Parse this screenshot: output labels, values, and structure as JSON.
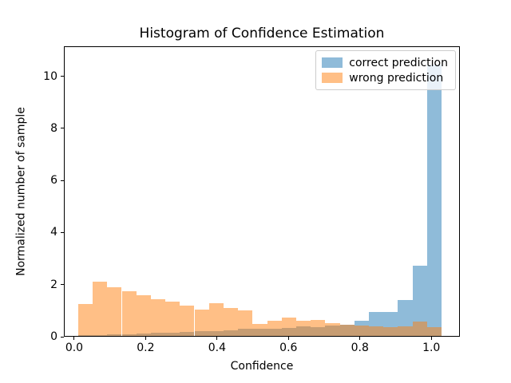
{
  "chart_data": {
    "type": "bar",
    "subtype": "overlapping-histogram",
    "title": "Histogram of Confidence Estimation",
    "xlabel": "Confidence",
    "ylabel": "Normalized number of sample",
    "x_ticks": [
      0.0,
      0.2,
      0.4,
      0.6,
      0.8,
      1.0
    ],
    "x_tick_labels": [
      "0.0",
      "0.2",
      "0.4",
      "0.6",
      "0.8",
      "1.0"
    ],
    "y_ticks": [
      0,
      2,
      4,
      6,
      8,
      10
    ],
    "y_tick_labels": [
      "0",
      "2",
      "4",
      "6",
      "8",
      "10"
    ],
    "xlim": [
      -0.029,
      1.08
    ],
    "ylim": [
      0,
      11.15
    ],
    "grid": false,
    "legend_position": "upper right",
    "bin_edges": [
      0.011,
      0.0517,
      0.0924,
      0.1331,
      0.1738,
      0.2145,
      0.2552,
      0.2959,
      0.3366,
      0.3773,
      0.418,
      0.4587,
      0.4994,
      0.5401,
      0.5808,
      0.6215,
      0.6622,
      0.7029,
      0.7436,
      0.7843,
      0.825,
      0.8657,
      0.9064,
      0.9471,
      0.9878,
      1.0285
    ],
    "series": [
      {
        "name": "correct prediction",
        "color": "#1f77b4",
        "alpha": 0.5,
        "values": [
          0.05,
          0.07,
          0.1,
          0.1,
          0.13,
          0.15,
          0.15,
          0.17,
          0.2,
          0.2,
          0.24,
          0.3,
          0.3,
          0.32,
          0.35,
          0.4,
          0.38,
          0.43,
          0.45,
          0.62,
          0.95,
          0.95,
          1.42,
          2.72,
          10.45
        ]
      },
      {
        "name": "wrong prediction",
        "color": "#ff7f0e",
        "alpha": 0.5,
        "values": [
          1.25,
          2.1,
          1.9,
          1.75,
          1.6,
          1.45,
          1.35,
          1.2,
          1.05,
          1.28,
          1.1,
          1.02,
          0.5,
          0.62,
          0.75,
          0.62,
          0.64,
          0.52,
          0.45,
          0.42,
          0.4,
          0.38,
          0.4,
          0.58,
          0.36
        ]
      }
    ]
  }
}
